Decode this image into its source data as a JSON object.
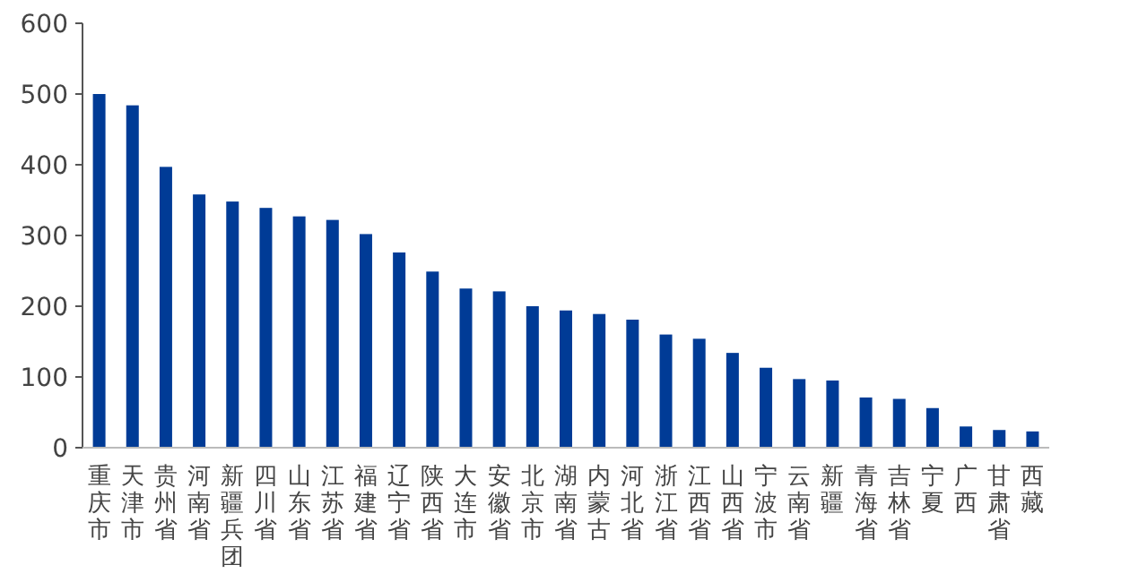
{
  "chart_data": {
    "type": "bar",
    "categories": [
      "重庆市",
      "天津市",
      "贵州省",
      "河南省",
      "新疆兵团",
      "四川省",
      "山东省",
      "江苏省",
      "福建省",
      "辽宁省",
      "陕西省",
      "大连市",
      "安徽省",
      "北京市",
      "湖南省",
      "内蒙古",
      "河北省",
      "浙江省",
      "江西省",
      "山西省",
      "宁波市",
      "云南省",
      "新疆",
      "青海省",
      "吉林省",
      "宁夏",
      "广西",
      "甘肃省",
      "西藏"
    ],
    "values": [
      500,
      484,
      397,
      358,
      348,
      339,
      327,
      322,
      302,
      276,
      249,
      225,
      221,
      200,
      194,
      189,
      181,
      160,
      154,
      134,
      113,
      97,
      95,
      71,
      69,
      56,
      30,
      25,
      23
    ],
    "color": "#003b96",
    "ylim": [
      0,
      600
    ],
    "yticks": [
      0,
      100,
      200,
      300,
      400,
      500,
      600
    ],
    "grid": false
  }
}
